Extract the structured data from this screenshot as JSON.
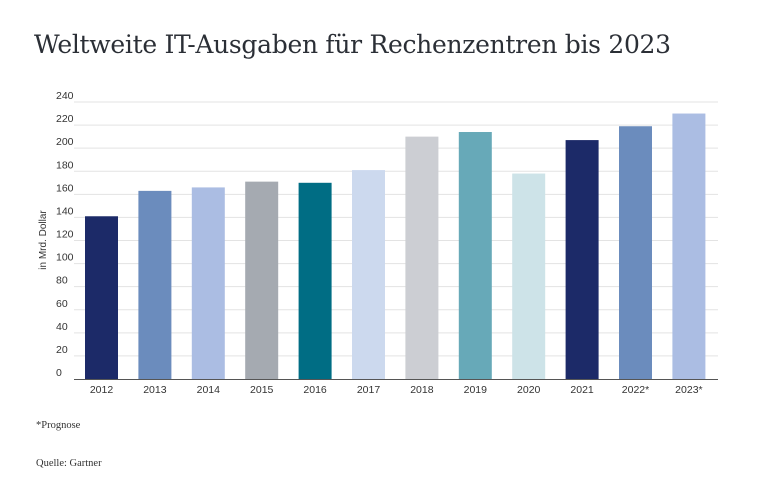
{
  "chart_data": {
    "type": "bar",
    "title": "Weltweite IT-Ausgaben für Rechenzentren bis 2023",
    "ylabel": "in Mrd. Dollar",
    "xlabel": "",
    "ylim": [
      0,
      240
    ],
    "yticks": [
      0,
      20,
      40,
      60,
      80,
      100,
      120,
      140,
      160,
      180,
      200,
      220,
      240
    ],
    "grid": true,
    "legend": "none",
    "categories": [
      "2012",
      "2013",
      "2014",
      "2015",
      "2016",
      "2017",
      "2018",
      "2019",
      "2020",
      "2021",
      "2022*",
      "2023*"
    ],
    "values": [
      141,
      163,
      166,
      171,
      170,
      181,
      210,
      214,
      178,
      207,
      219,
      230
    ],
    "colors": [
      "#1c2a68",
      "#6b8cbd",
      "#abbde3",
      "#a5aab1",
      "#006d84",
      "#ccd9ee",
      "#ccced3",
      "#67a9b8",
      "#cde3e8",
      "#1c2a68",
      "#6b8cbd",
      "#abbde3"
    ]
  },
  "footnotes": {
    "prognose": "*Prognose",
    "source": "Quelle: Gartner"
  }
}
